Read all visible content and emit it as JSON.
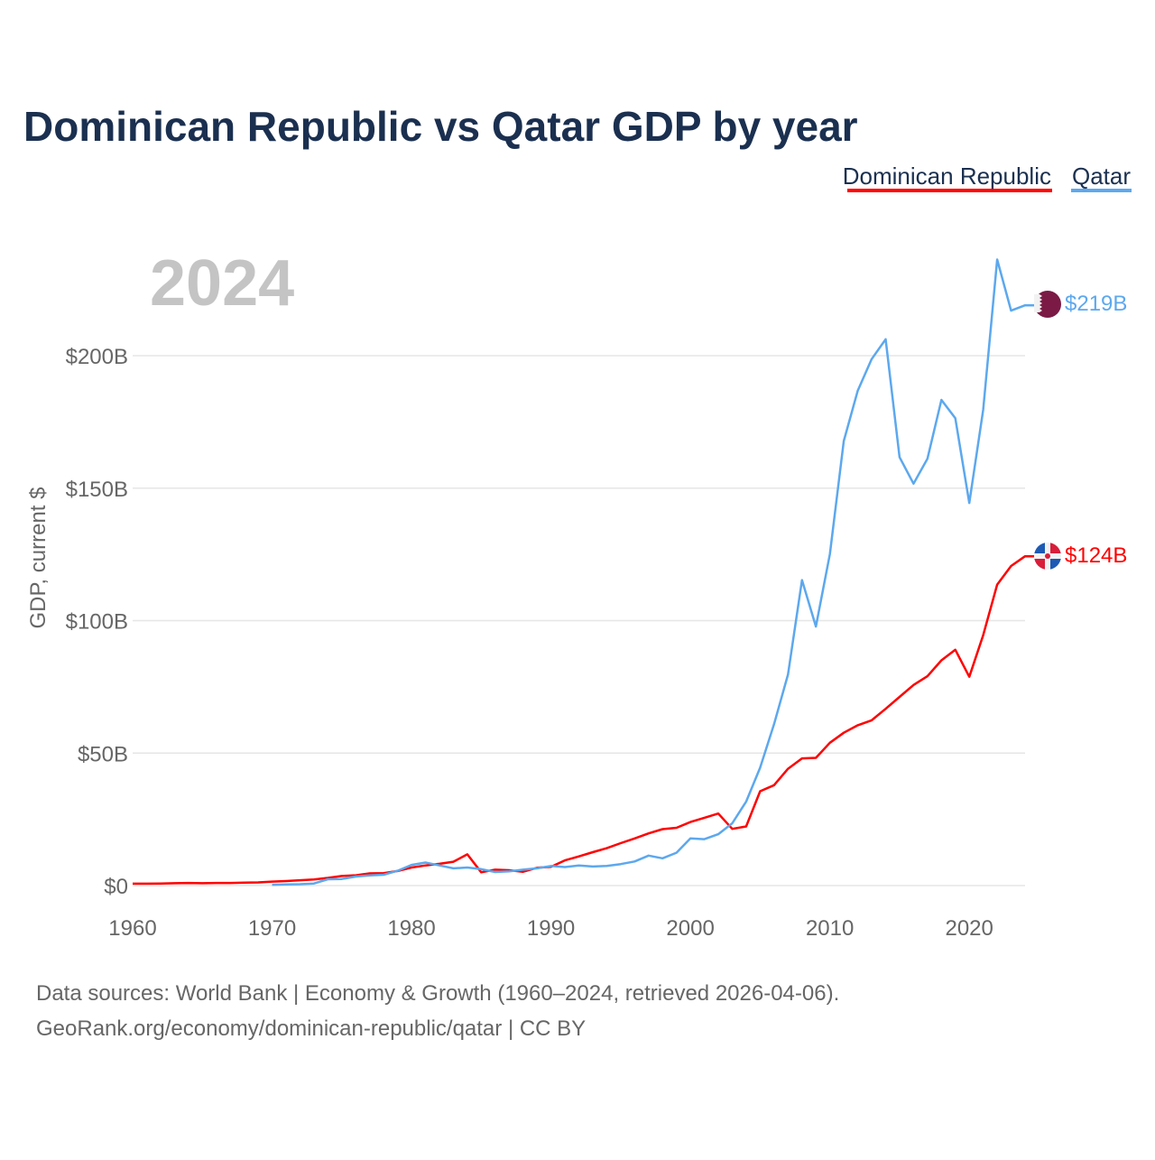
{
  "chart_data": {
    "type": "line",
    "title": "Dominican Republic vs Qatar GDP by year",
    "ylabel": "GDP, current $",
    "xlabel": "",
    "year_display": "2024",
    "xlim": [
      1960,
      2024
    ],
    "ylim": [
      0,
      240
    ],
    "x_ticks": [
      1960,
      1970,
      1980,
      1990,
      2000,
      2010,
      2020
    ],
    "y_ticks": [
      0,
      50,
      100,
      150,
      200
    ],
    "y_tick_labels": [
      "$0",
      "$50B",
      "$100B",
      "$150B",
      "$200B"
    ],
    "grid": true,
    "legend_placement": "top-right",
    "series": [
      {
        "name": "Dominican Republic",
        "color": "#ff0000",
        "start_year": 1960,
        "end_label": "$124B",
        "values": [
          0.7,
          0.7,
          0.8,
          0.9,
          1.0,
          0.9,
          1.0,
          1.0,
          1.1,
          1.2,
          1.5,
          1.7,
          2.0,
          2.3,
          2.9,
          3.6,
          3.9,
          4.6,
          4.7,
          5.5,
          6.8,
          7.6,
          8.2,
          9.0,
          11.8,
          5.0,
          6.0,
          5.8,
          5.2,
          6.7,
          7.1,
          9.5,
          11.0,
          12.6,
          14.1,
          16.0,
          17.8,
          19.7,
          21.3,
          21.8,
          24.0,
          25.6,
          27.2,
          21.4,
          22.3,
          35.6,
          37.9,
          44.1,
          48.0,
          48.2,
          53.9,
          57.7,
          60.5,
          62.4,
          66.7,
          71.2,
          75.7,
          79.0,
          85.0,
          89.0,
          78.8,
          94.5,
          113.6,
          120.6,
          124.3
        ]
      },
      {
        "name": "Qatar",
        "color": "#5ca8ee",
        "start_year": 1970,
        "end_label": "$219B",
        "values": [
          0.3,
          0.4,
          0.5,
          0.8,
          2.4,
          2.5,
          3.4,
          3.8,
          4.1,
          5.6,
          7.8,
          8.7,
          7.6,
          6.5,
          6.8,
          6.2,
          5.1,
          5.4,
          6.0,
          6.5,
          7.4,
          7.0,
          7.6,
          7.2,
          7.4,
          8.1,
          9.1,
          11.3,
          10.3,
          12.4,
          17.8,
          17.5,
          19.4,
          23.5,
          31.7,
          44.5,
          60.9,
          79.7,
          115.3,
          97.8,
          125.1,
          167.8,
          186.8,
          198.7,
          206.2,
          161.7,
          151.7,
          161.1,
          183.3,
          176.4,
          144.4,
          179.6,
          236.3,
          217.0,
          219.0
        ]
      }
    ]
  },
  "footer": {
    "line1": "Data sources: World Bank | Economy & Growth (1960–2024, retrieved 2026-04-06).",
    "line2": "GeoRank.org/economy/dominican-republic/qatar | CC BY"
  },
  "colors": {
    "title": "#1b3050",
    "grid": "#e6e6e6",
    "axis_text": "#666666",
    "year": "#c4c4c4"
  }
}
